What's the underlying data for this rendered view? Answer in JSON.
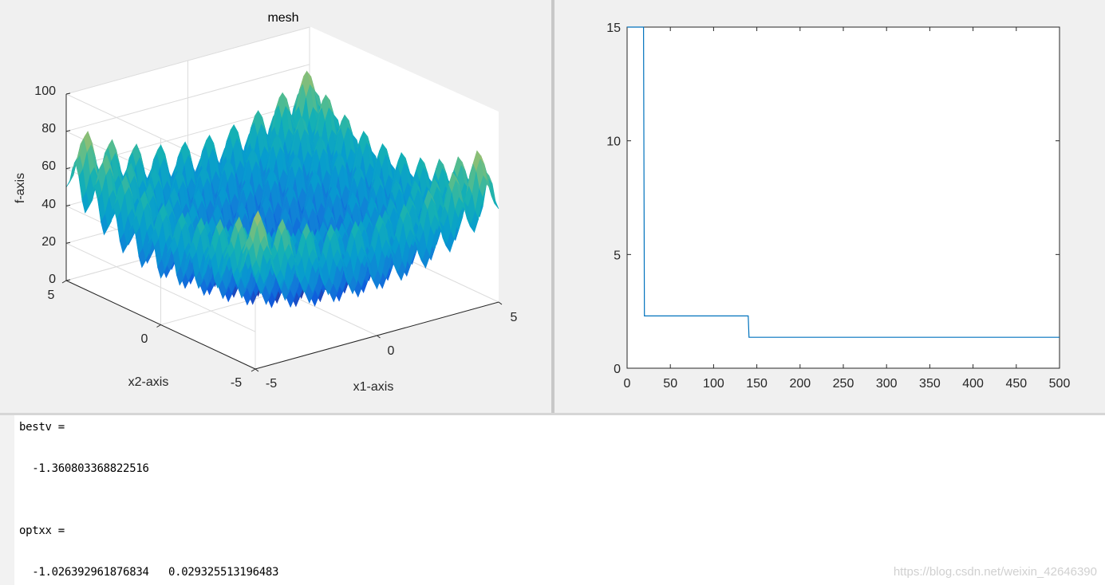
{
  "chart_data": [
    {
      "type": "surface",
      "title": "mesh",
      "xlabel": "x1-axis",
      "ylabel": "x2-axis",
      "zlabel": "f-axis",
      "xlim": [
        -5,
        5
      ],
      "ylim": [
        -5,
        5
      ],
      "zlim": [
        0,
        100
      ],
      "x_ticks": [
        "-5",
        "0",
        "5"
      ],
      "y_ticks": [
        "-5",
        "0",
        "5"
      ],
      "z_ticks": [
        "0",
        "20",
        "40",
        "60",
        "80",
        "100"
      ],
      "grid": true,
      "colormap": "parula"
    },
    {
      "type": "line",
      "title": "",
      "xlabel": "",
      "ylabel": "",
      "xlim": [
        0,
        500
      ],
      "ylim": [
        0,
        15
      ],
      "x_ticks": [
        "0",
        "50",
        "100",
        "150",
        "200",
        "250",
        "300",
        "350",
        "400",
        "450",
        "500"
      ],
      "y_ticks": [
        "0",
        "5",
        "10",
        "15"
      ],
      "grid": false,
      "series": [
        {
          "color": "#0072bd",
          "x": [
            0,
            19,
            20,
            140,
            141,
            500
          ],
          "y": [
            15,
            15,
            2.3,
            2.3,
            1.36,
            1.36
          ]
        }
      ]
    }
  ],
  "console": {
    "lines": [
      "bestv =",
      "  -1.360803368822516",
      "optxx =",
      "  -1.026392961876834   0.029325513196483"
    ]
  },
  "watermark": "https://blog.csdn.net/weixin_42646390"
}
